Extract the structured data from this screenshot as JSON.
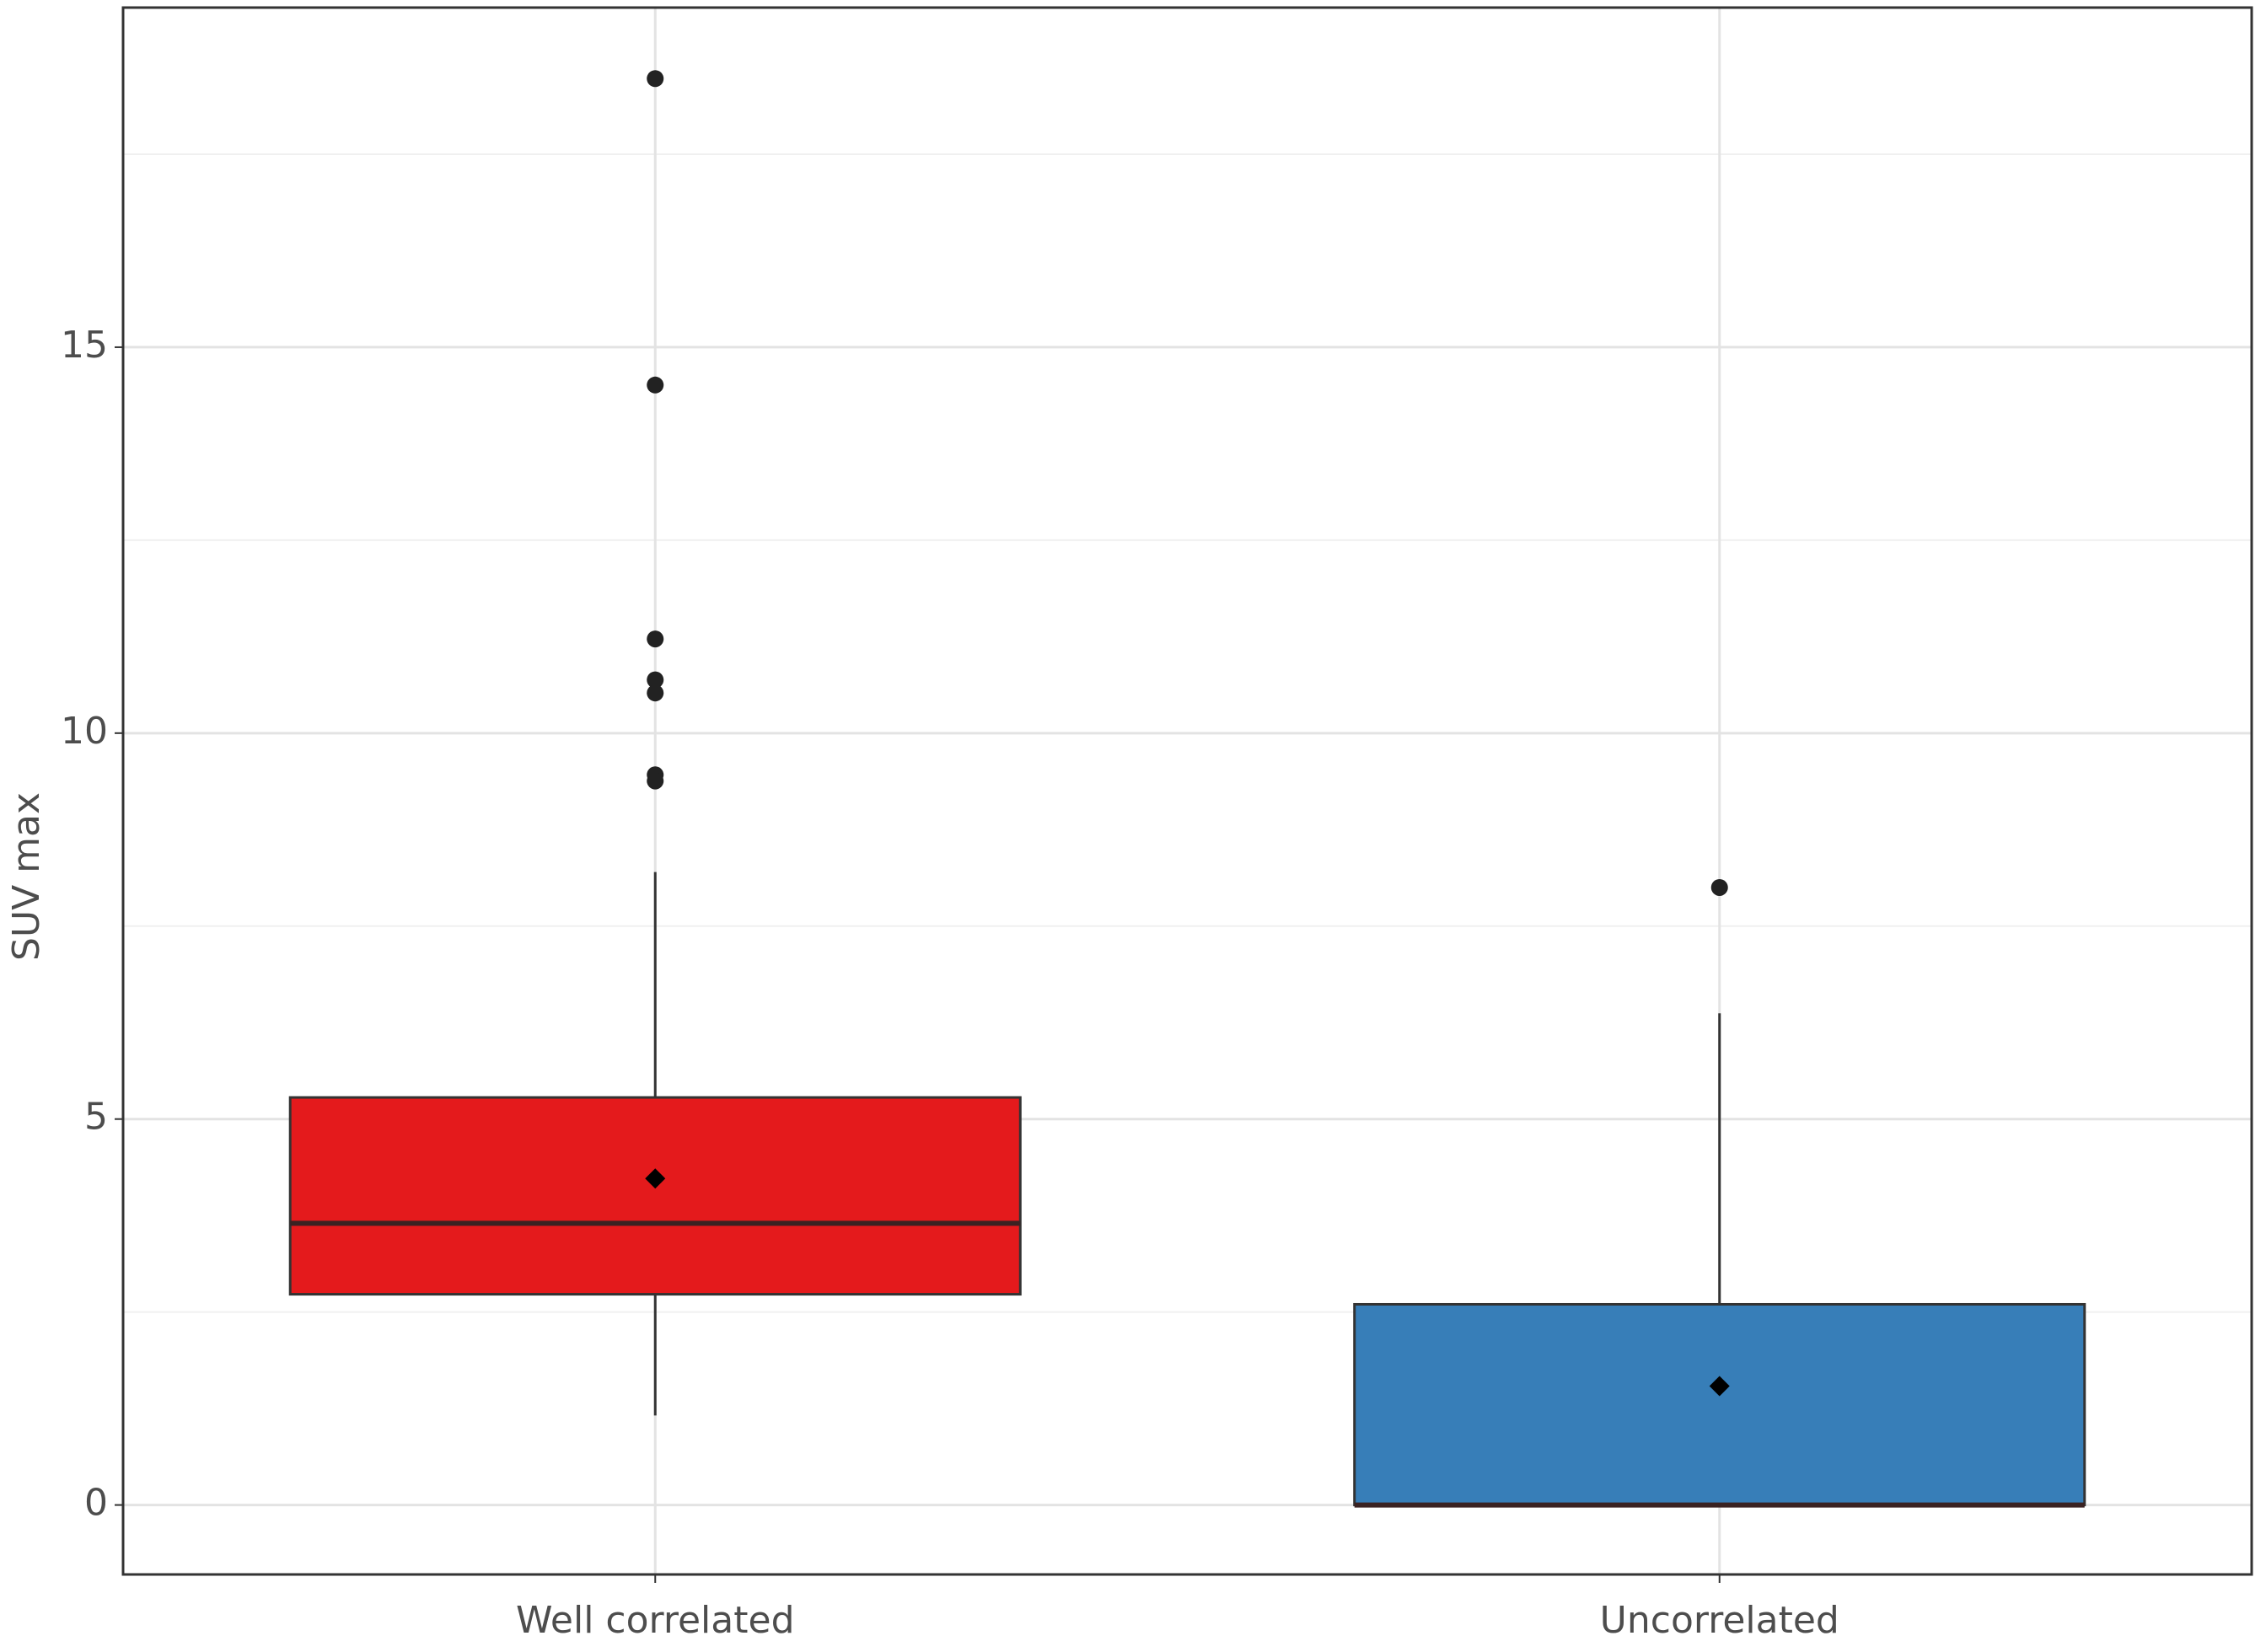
{
  "chart_data": {
    "type": "box",
    "y_label": "SUV max",
    "categories": [
      "Well correlated",
      "Uncorrelated"
    ],
    "boxes": [
      {
        "whisker_low": 1.16,
        "q1": 2.73,
        "median": 3.65,
        "q3": 5.28,
        "whisker_high": 8.2,
        "mean": 4.23,
        "outliers": [
          18.48,
          14.51,
          11.22,
          10.69,
          10.52,
          9.46,
          9.38
        ],
        "color": "#e41a1c"
      },
      {
        "whisker_low": 0,
        "q1": 0,
        "median": 0,
        "q3": 2.6,
        "whisker_high": 6.37,
        "mean": 1.54,
        "outliers": [
          8.0
        ],
        "color": "#377eb8"
      }
    ],
    "ylim": [
      -0.9,
      19.4
    ],
    "yticks": [
      0,
      5,
      10,
      15
    ],
    "grid": true,
    "minor_grid": true
  }
}
